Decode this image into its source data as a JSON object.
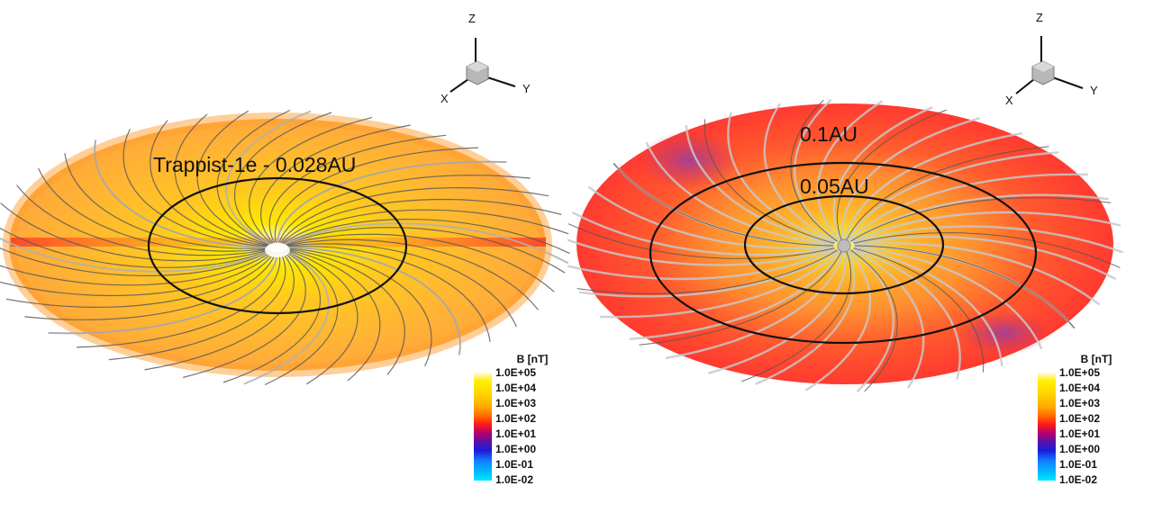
{
  "panels": [
    {
      "id": "left",
      "annotation": "Trappist-1e - 0.028AU",
      "orbits": [
        "Trappist-1e - 0.028AU"
      ],
      "axes": {
        "x": "X",
        "y": "Y",
        "z": "Z"
      },
      "legend": {
        "title": "B [nT]",
        "levels": [
          "1.0E+05",
          "1.0E+04",
          "1.0E+03",
          "1.0E+02",
          "1.0E+01",
          "1.0E+00",
          "1.0E-01",
          "1.0E-02"
        ]
      },
      "colors": {
        "disk_base": "#ffb030",
        "disk_inner": "#ffe020",
        "band": "#ff4020"
      }
    },
    {
      "id": "right",
      "annotations": [
        "0.1AU",
        "0.05AU"
      ],
      "axes": {
        "x": "X",
        "y": "Y",
        "z": "Z"
      },
      "legend": {
        "title": "B [nT]",
        "levels": [
          "1.0E+05",
          "1.0E+04",
          "1.0E+03",
          "1.0E+02",
          "1.0E+01",
          "1.0E+00",
          "1.0E-01",
          "1.0E-02"
        ]
      },
      "colors": {
        "disk_base": "#ff3a30",
        "disk_inner": "#ffc020",
        "purple": "#b0307a"
      }
    }
  ]
}
